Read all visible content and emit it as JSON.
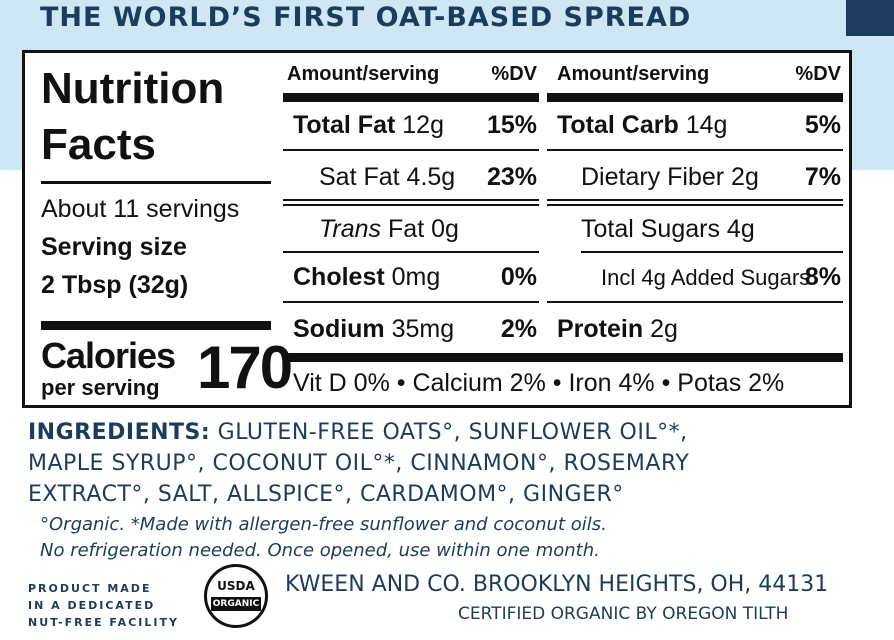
{
  "headline": "THE WORLD’S FIRST OAT-BASED SPREAD",
  "panel": {
    "title_line1": "Nutrition",
    "title_line2": "Facts",
    "servings": "About 11 servings",
    "serving_size_label": "Serving size",
    "serving_size_value": "2 Tbsp (32g)",
    "calories_label": "Calories",
    "calories_sub": "per serving",
    "calories_value": "170"
  },
  "columns": {
    "left_header_amount": "Amount/serving",
    "left_header_dv": "%DV",
    "right_header_amount": "Amount/serving",
    "right_header_dv": "%DV"
  },
  "nutrients_left": {
    "total_fat": {
      "name": "Total Fat",
      "amount": "12g",
      "dv": "15%"
    },
    "sat_fat": {
      "name": "Sat Fat",
      "amount": "4.5g",
      "dv": "23%"
    },
    "trans_fat": {
      "name_italic": "Trans",
      "name_rest": "Fat",
      "amount": "0g"
    },
    "cholest": {
      "name": "Cholest",
      "amount": "0mg",
      "dv": "0%"
    },
    "sodium": {
      "name": "Sodium",
      "amount": "35mg",
      "dv": "2%"
    }
  },
  "nutrients_right": {
    "total_carb": {
      "name": "Total Carb",
      "amount": "14g",
      "dv": "5%"
    },
    "fiber": {
      "name": "Dietary Fiber",
      "amount": "2g",
      "dv": "7%"
    },
    "total_sugars": {
      "name": "Total Sugars",
      "amount": "4g"
    },
    "added_sugars": {
      "name": "Incl 4g Added Sugars",
      "dv": "8%"
    },
    "protein": {
      "name": "Protein",
      "amount": "2g"
    }
  },
  "vitamins": "Vit D 0% • Calcium 2% • Iron 4% • Potas 2%",
  "ingredients": {
    "label": "INGREDIENTS:",
    "line1": "GLUTEN-FREE OATS°, SUNFLOWER OIL°*,",
    "line2": "MAPLE SYRUP°, COCONUT OIL°*, CINNAMON°, ROSEMARY",
    "line3": "EXTRACT°, SALT, ALLSPICE°, CARDAMOM°, GINGER°"
  },
  "notes": {
    "line1": "°Organic. *Made with allergen-free sunflower and coconut oils.",
    "line2": "No refrigeration needed. Once opened, use within one month."
  },
  "facility": {
    "line1": "PRODUCT MADE",
    "line2": "IN A DEDICATED",
    "line3": "NUT-FREE FACILITY"
  },
  "seal": {
    "top": "USDA",
    "band": "ORGANIC"
  },
  "company": "KWEEN AND CO. BROOKLYN HEIGHTS, OH, 44131",
  "certification": "CERTIFIED ORGANIC BY OREGON TILTH"
}
